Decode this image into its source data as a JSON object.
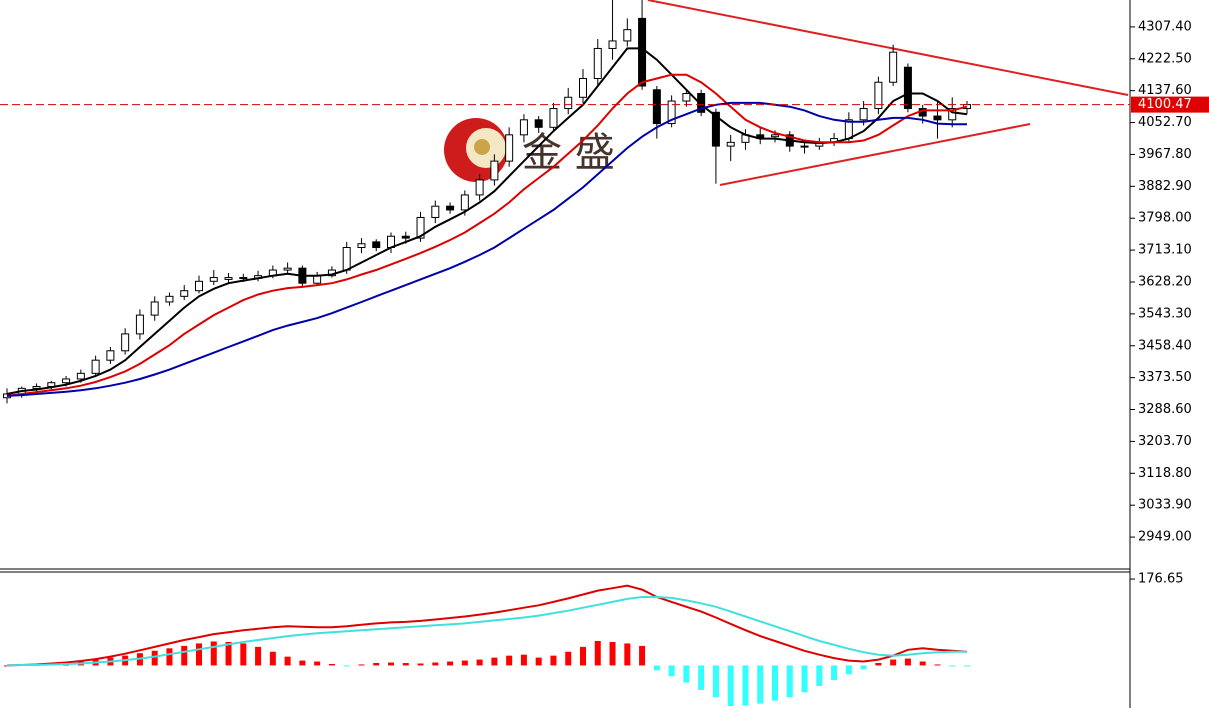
{
  "chart_data": [
    {
      "type": "candlestick",
      "watermark": "金 盛",
      "ylim": [
        2864,
        4379
      ],
      "yticks": [
        {
          "value": 4307.4,
          "label": "4307.40"
        },
        {
          "value": 4222.5,
          "label": "4222.50"
        },
        {
          "value": 4137.6,
          "label": "4137.60"
        },
        {
          "value": 4052.7,
          "label": "4052.70"
        },
        {
          "value": 3967.8,
          "label": "3967.80"
        },
        {
          "value": 3882.9,
          "label": "3882.90"
        },
        {
          "value": 3798,
          "label": "3798.00"
        },
        {
          "value": 3713.1,
          "label": "3713.10"
        },
        {
          "value": 3628.2,
          "label": "3628.20"
        },
        {
          "value": 3543.3,
          "label": "3543.30"
        },
        {
          "value": 3458.4,
          "label": "3458.40"
        },
        {
          "value": 3373.5,
          "label": "3373.50"
        },
        {
          "value": 3288.6,
          "label": "3288.60"
        },
        {
          "value": 3203.7,
          "label": "3203.70"
        },
        {
          "value": 3118.8,
          "label": "3118.80"
        },
        {
          "value": 3033.9,
          "label": "3033.90"
        },
        {
          "value": 2949,
          "label": "2949.00"
        }
      ],
      "last_price": 4100.47,
      "open": [
        3320,
        3330,
        3345,
        3350,
        3360,
        3370,
        3385,
        3420,
        3445,
        3490,
        3540,
        3575,
        3590,
        3605,
        3630,
        3635,
        3640,
        3638,
        3645,
        3660,
        3665,
        3625,
        3645,
        3660,
        3720,
        3735,
        3720,
        3750,
        3745,
        3800,
        3830,
        3820,
        3860,
        3900,
        3950,
        4020,
        4060,
        4040,
        4090,
        4120,
        4170,
        4250,
        4270,
        4330,
        4140,
        4050,
        4110,
        4130,
        4080,
        3990,
        4000,
        4020,
        4015,
        4020,
        3990,
        3990,
        4000,
        4010,
        4060,
        4090,
        4160,
        4200,
        4090,
        4070,
        4060,
        4090
      ],
      "high": [
        3345,
        3350,
        3358,
        3365,
        3378,
        3395,
        3432,
        3455,
        3505,
        3555,
        3590,
        3600,
        3620,
        3645,
        3660,
        3652,
        3650,
        3658,
        3672,
        3680,
        3672,
        3655,
        3670,
        3735,
        3745,
        3742,
        3760,
        3762,
        3815,
        3845,
        3840,
        3872,
        3915,
        3968,
        4040,
        4075,
        4070,
        4105,
        4145,
        4195,
        4275,
        4379,
        4330,
        4379,
        4150,
        4125,
        4140,
        4140,
        4090,
        4020,
        4035,
        4040,
        4032,
        4030,
        4005,
        4012,
        4025,
        4080,
        4110,
        4175,
        4260,
        4210,
        4100,
        4110,
        4120,
        4110
      ],
      "low": [
        3305,
        3320,
        3335,
        3340,
        3350,
        3360,
        3375,
        3410,
        3435,
        3475,
        3525,
        3565,
        3580,
        3598,
        3620,
        3625,
        3628,
        3630,
        3638,
        3650,
        3615,
        3620,
        3640,
        3650,
        3705,
        3710,
        3705,
        3730,
        3735,
        3785,
        3810,
        3805,
        3845,
        3885,
        3935,
        4000,
        4025,
        4030,
        4075,
        4105,
        4150,
        4220,
        4255,
        4140,
        4010,
        4040,
        4095,
        4070,
        3890,
        3950,
        3980,
        3995,
        4000,
        3975,
        3970,
        3980,
        3990,
        4000,
        4045,
        4075,
        4150,
        4080,
        4050,
        4010,
        4040,
        4075
      ],
      "close": [
        3330,
        3345,
        3350,
        3360,
        3370,
        3385,
        3420,
        3445,
        3490,
        3540,
        3575,
        3590,
        3605,
        3630,
        3640,
        3640,
        3638,
        3645,
        3660,
        3665,
        3625,
        3645,
        3660,
        3720,
        3730,
        3720,
        3750,
        3745,
        3800,
        3830,
        3820,
        3860,
        3900,
        3950,
        4020,
        4060,
        4040,
        4090,
        4120,
        4170,
        4250,
        4270,
        4300,
        4150,
        4050,
        4110,
        4130,
        4080,
        3990,
        4000,
        4020,
        4010,
        4020,
        3990,
        3990,
        4000,
        4010,
        4060,
        4090,
        4160,
        4240,
        4090,
        4070,
        4060,
        4090,
        4100.47
      ],
      "series": [
        {
          "color": "#000000",
          "values": [
            3330,
            3338,
            3342,
            3348,
            3355,
            3365,
            3378,
            3395,
            3420,
            3455,
            3490,
            3525,
            3560,
            3590,
            3610,
            3625,
            3632,
            3638,
            3645,
            3650,
            3645,
            3645,
            3648,
            3660,
            3680,
            3700,
            3720,
            3735,
            3750,
            3775,
            3795,
            3815,
            3840,
            3870,
            3910,
            3950,
            3990,
            4030,
            4065,
            4100,
            4150,
            4200,
            4250,
            4250,
            4220,
            4180,
            4140,
            4100,
            4070,
            4040,
            4020,
            4010,
            4010,
            4005,
            4000,
            3998,
            4000,
            4010,
            4030,
            4065,
            4110,
            4130,
            4130,
            4110,
            4080,
            4075
          ]
        },
        {
          "color": "#dd0000",
          "values": [
            3325,
            3330,
            3335,
            3340,
            3345,
            3352,
            3362,
            3375,
            3390,
            3410,
            3435,
            3460,
            3490,
            3515,
            3540,
            3560,
            3580,
            3595,
            3605,
            3612,
            3615,
            3620,
            3625,
            3635,
            3648,
            3660,
            3675,
            3690,
            3705,
            3722,
            3740,
            3760,
            3785,
            3810,
            3840,
            3875,
            3905,
            3935,
            3970,
            4005,
            4045,
            4090,
            4130,
            4160,
            4170,
            4180,
            4180,
            4160,
            4130,
            4095,
            4060,
            4040,
            4025,
            4015,
            4005,
            4000,
            4000,
            4000,
            4005,
            4020,
            4045,
            4070,
            4085,
            4085,
            4085,
            4095
          ]
        },
        {
          "color": "#0000aa",
          "values": [
            3325,
            3327,
            3330,
            3333,
            3336,
            3340,
            3345,
            3352,
            3360,
            3370,
            3382,
            3395,
            3410,
            3425,
            3440,
            3455,
            3470,
            3485,
            3500,
            3512,
            3522,
            3532,
            3545,
            3560,
            3575,
            3590,
            3605,
            3620,
            3635,
            3650,
            3665,
            3682,
            3700,
            3720,
            3745,
            3770,
            3795,
            3820,
            3850,
            3880,
            3915,
            3950,
            3985,
            4015,
            4040,
            4060,
            4075,
            4090,
            4100,
            4105,
            4105,
            4105,
            4100,
            4095,
            4085,
            4070,
            4060,
            4055,
            4055,
            4060,
            4065,
            4065,
            4060,
            4050,
            4048,
            4048
          ]
        }
      ]
    },
    {
      "type": "macd",
      "ylim": [
        -87,
        189
      ],
      "yticks": [
        176.65
      ],
      "hist": [
        0,
        1,
        2,
        3,
        5,
        8,
        12,
        16,
        20,
        25,
        30,
        35,
        40,
        45,
        49,
        48,
        45,
        38,
        28,
        18,
        10,
        8,
        3,
        -1,
        2,
        5,
        6,
        5,
        4,
        6,
        8,
        10,
        12,
        16,
        20,
        22,
        16,
        20,
        28,
        38,
        50,
        48,
        45,
        40,
        -10,
        -22,
        -35,
        -50,
        -65,
        -83,
        -82,
        -78,
        -72,
        -65,
        -55,
        -42,
        -30,
        -18,
        -8,
        5,
        12,
        14,
        8,
        2,
        -2,
        -1
      ],
      "hist_colors": [
        "#ff0000",
        "#33ffff"
      ],
      "series": [
        {
          "color": "#dd0000",
          "values": [
            0,
            1,
            2,
            4,
            6,
            9,
            13,
            18,
            24,
            31,
            38,
            45,
            52,
            58,
            64,
            68,
            72,
            75,
            78,
            80,
            79,
            78,
            78,
            80,
            83,
            86,
            88,
            89,
            91,
            94,
            97,
            100,
            104,
            108,
            113,
            118,
            123,
            130,
            137,
            145,
            153,
            158,
            163,
            155,
            140,
            130,
            120,
            110,
            98,
            85,
            72,
            60,
            50,
            40,
            30,
            22,
            15,
            10,
            8,
            12,
            20,
            32,
            35,
            32,
            30,
            28
          ]
        },
        {
          "color": "#40e0e0",
          "values": [
            0,
            1,
            1,
            2,
            3,
            4,
            6,
            8,
            11,
            14,
            18,
            23,
            28,
            33,
            38,
            43,
            48,
            52,
            56,
            60,
            63,
            66,
            68,
            70,
            72,
            74,
            76,
            78,
            80,
            82,
            84,
            86,
            89,
            92,
            95,
            98,
            102,
            107,
            112,
            118,
            124,
            130,
            136,
            140,
            140,
            138,
            133,
            127,
            120,
            110,
            100,
            90,
            80,
            70,
            60,
            50,
            42,
            34,
            27,
            22,
            20,
            22,
            25,
            27,
            28,
            28
          ]
        }
      ]
    }
  ]
}
